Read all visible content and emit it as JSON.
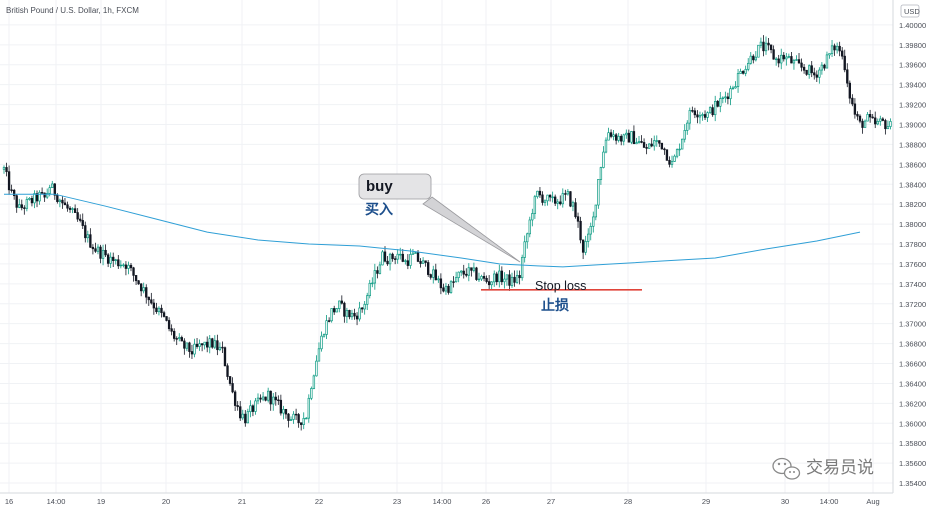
{
  "header": {
    "symbol_text": "British Pound / U.S. Dollar, 1h, FXCM"
  },
  "currency_badge": "USD",
  "chart_data": {
    "type": "candlestick",
    "title": "British Pound / U.S. Dollar, 1h, FXCM",
    "ylim": [
      1.353,
      1.4025
    ],
    "y_ticks": [
      "1.40000",
      "1.39800",
      "1.39600",
      "1.39400",
      "1.39200",
      "1.39000",
      "1.38800",
      "1.38600",
      "1.38400",
      "1.38200",
      "1.38000",
      "1.37800",
      "1.37600",
      "1.37400",
      "1.37200",
      "1.37000",
      "1.36800",
      "1.36600",
      "1.36400",
      "1.36200",
      "1.36000",
      "1.35800",
      "1.35600",
      "1.35400"
    ],
    "y_tick_values": [
      1.4,
      1.398,
      1.396,
      1.394,
      1.392,
      1.39,
      1.388,
      1.386,
      1.384,
      1.382,
      1.38,
      1.378,
      1.376,
      1.374,
      1.372,
      1.37,
      1.368,
      1.366,
      1.364,
      1.362,
      1.36,
      1.358,
      1.356,
      1.354
    ],
    "x_ticks": [
      "16",
      "14:00",
      "19",
      "20",
      "21",
      "22",
      "23",
      "14:00",
      "26",
      "27",
      "28",
      "29",
      "30",
      "14:00",
      "Aug"
    ],
    "close_path": [
      [
        0,
        1.3855
      ],
      [
        3,
        1.383
      ],
      [
        6,
        1.3815
      ],
      [
        10,
        1.3822
      ],
      [
        14,
        1.3828
      ],
      [
        16,
        1.3826
      ],
      [
        18,
        1.3838
      ],
      [
        20,
        1.3832
      ],
      [
        24,
        1.3818
      ],
      [
        27,
        1.381
      ],
      [
        30,
        1.38
      ],
      [
        33,
        1.3785
      ],
      [
        36,
        1.3775
      ],
      [
        40,
        1.3768
      ],
      [
        44,
        1.3762
      ],
      [
        48,
        1.376
      ],
      [
        52,
        1.3745
      ],
      [
        56,
        1.373
      ],
      [
        60,
        1.3715
      ],
      [
        63,
        1.3705
      ],
      [
        66,
        1.369
      ],
      [
        70,
        1.3678
      ],
      [
        74,
        1.3672
      ],
      [
        78,
        1.3678
      ],
      [
        82,
        1.368
      ],
      [
        86,
        1.3672
      ],
      [
        88,
        1.365
      ],
      [
        90,
        1.363
      ],
      [
        93,
        1.361
      ],
      [
        95,
        1.3605
      ],
      [
        98,
        1.3615
      ],
      [
        101,
        1.3622
      ],
      [
        104,
        1.3628
      ],
      [
        107,
        1.362
      ],
      [
        110,
        1.3612
      ],
      [
        113,
        1.3605
      ],
      [
        116,
        1.3602
      ],
      [
        119,
        1.3608
      ],
      [
        121,
        1.364
      ],
      [
        123,
        1.3665
      ],
      [
        126,
        1.3695
      ],
      [
        129,
        1.3712
      ],
      [
        132,
        1.3718
      ],
      [
        135,
        1.371
      ],
      [
        138,
        1.3708
      ],
      [
        141,
        1.3715
      ],
      [
        144,
        1.3735
      ],
      [
        147,
        1.3755
      ],
      [
        149,
        1.3768
      ],
      [
        152,
        1.3765
      ],
      [
        155,
        1.377
      ],
      [
        158,
        1.3762
      ],
      [
        161,
        1.3768
      ],
      [
        164,
        1.3762
      ],
      [
        167,
        1.3755
      ],
      [
        170,
        1.3745
      ],
      [
        173,
        1.3735
      ],
      [
        176,
        1.3738
      ],
      [
        179,
        1.3748
      ],
      [
        182,
        1.3752
      ],
      [
        185,
        1.375
      ],
      [
        188,
        1.3745
      ],
      [
        191,
        1.3742
      ],
      [
        194,
        1.3748
      ],
      [
        197,
        1.3745
      ],
      [
        200,
        1.3742
      ],
      [
        203,
        1.3748
      ],
      [
        204,
        1.3765
      ],
      [
        206,
        1.379
      ],
      [
        208,
        1.3815
      ],
      [
        210,
        1.383
      ],
      [
        213,
        1.3825
      ],
      [
        216,
        1.3822
      ],
      [
        219,
        1.3825
      ],
      [
        222,
        1.3828
      ],
      [
        224,
        1.3818
      ],
      [
        226,
        1.38
      ],
      [
        228,
        1.3775
      ],
      [
        230,
        1.3785
      ],
      [
        232,
        1.3805
      ],
      [
        234,
        1.3845
      ],
      [
        236,
        1.3875
      ],
      [
        238,
        1.3893
      ],
      [
        241,
        1.3888
      ],
      [
        244,
        1.3885
      ],
      [
        247,
        1.3888
      ],
      [
        250,
        1.3882
      ],
      [
        253,
        1.3875
      ],
      [
        256,
        1.3883
      ],
      [
        259,
        1.388
      ],
      [
        261,
        1.387
      ],
      [
        263,
        1.386
      ],
      [
        265,
        1.3872
      ],
      [
        267,
        1.3888
      ],
      [
        269,
        1.3905
      ],
      [
        271,
        1.3915
      ],
      [
        274,
        1.3912
      ],
      [
        277,
        1.391
      ],
      [
        280,
        1.3918
      ],
      [
        283,
        1.3925
      ],
      [
        286,
        1.3935
      ],
      [
        289,
        1.3948
      ],
      [
        292,
        1.396
      ],
      [
        295,
        1.397
      ],
      [
        298,
        1.3978
      ],
      [
        301,
        1.3975
      ],
      [
        304,
        1.3965
      ],
      [
        307,
        1.3968
      ],
      [
        310,
        1.3963
      ],
      [
        313,
        1.3958
      ],
      [
        316,
        1.3955
      ],
      [
        319,
        1.395
      ],
      [
        322,
        1.3958
      ],
      [
        325,
        1.397
      ],
      [
        327,
        1.3978
      ],
      [
        329,
        1.3975
      ],
      [
        331,
        1.396
      ],
      [
        333,
        1.393
      ],
      [
        335,
        1.391
      ],
      [
        337,
        1.39
      ],
      [
        340,
        1.3905
      ],
      [
        343,
        1.39
      ],
      [
        346,
        1.3902
      ],
      [
        349,
        1.3898
      ]
    ],
    "moving_average": [
      [
        0,
        1.383
      ],
      [
        20,
        1.383
      ],
      [
        40,
        1.3818
      ],
      [
        60,
        1.3805
      ],
      [
        80,
        1.3792
      ],
      [
        100,
        1.3784
      ],
      [
        120,
        1.378
      ],
      [
        140,
        1.3778
      ],
      [
        160,
        1.3773
      ],
      [
        180,
        1.3766
      ],
      [
        195,
        1.376
      ],
      [
        210,
        1.3758
      ],
      [
        220,
        1.3757
      ],
      [
        240,
        1.376
      ],
      [
        260,
        1.3763
      ],
      [
        280,
        1.3766
      ],
      [
        300,
        1.3775
      ],
      [
        320,
        1.3783
      ],
      [
        337,
        1.3792
      ]
    ],
    "stop_loss": 1.3734
  },
  "annotations": {
    "buy_label": "buy",
    "buy_cn": "买入",
    "stop_label": "Stop loss",
    "stop_cn": "止损"
  },
  "watermark": {
    "text": "交易员说"
  },
  "colors": {
    "up": "#089981",
    "down": "#131722",
    "ma": "#2f9fd6",
    "stop": "#e0443a",
    "cn_label": "#1d4f8c"
  }
}
